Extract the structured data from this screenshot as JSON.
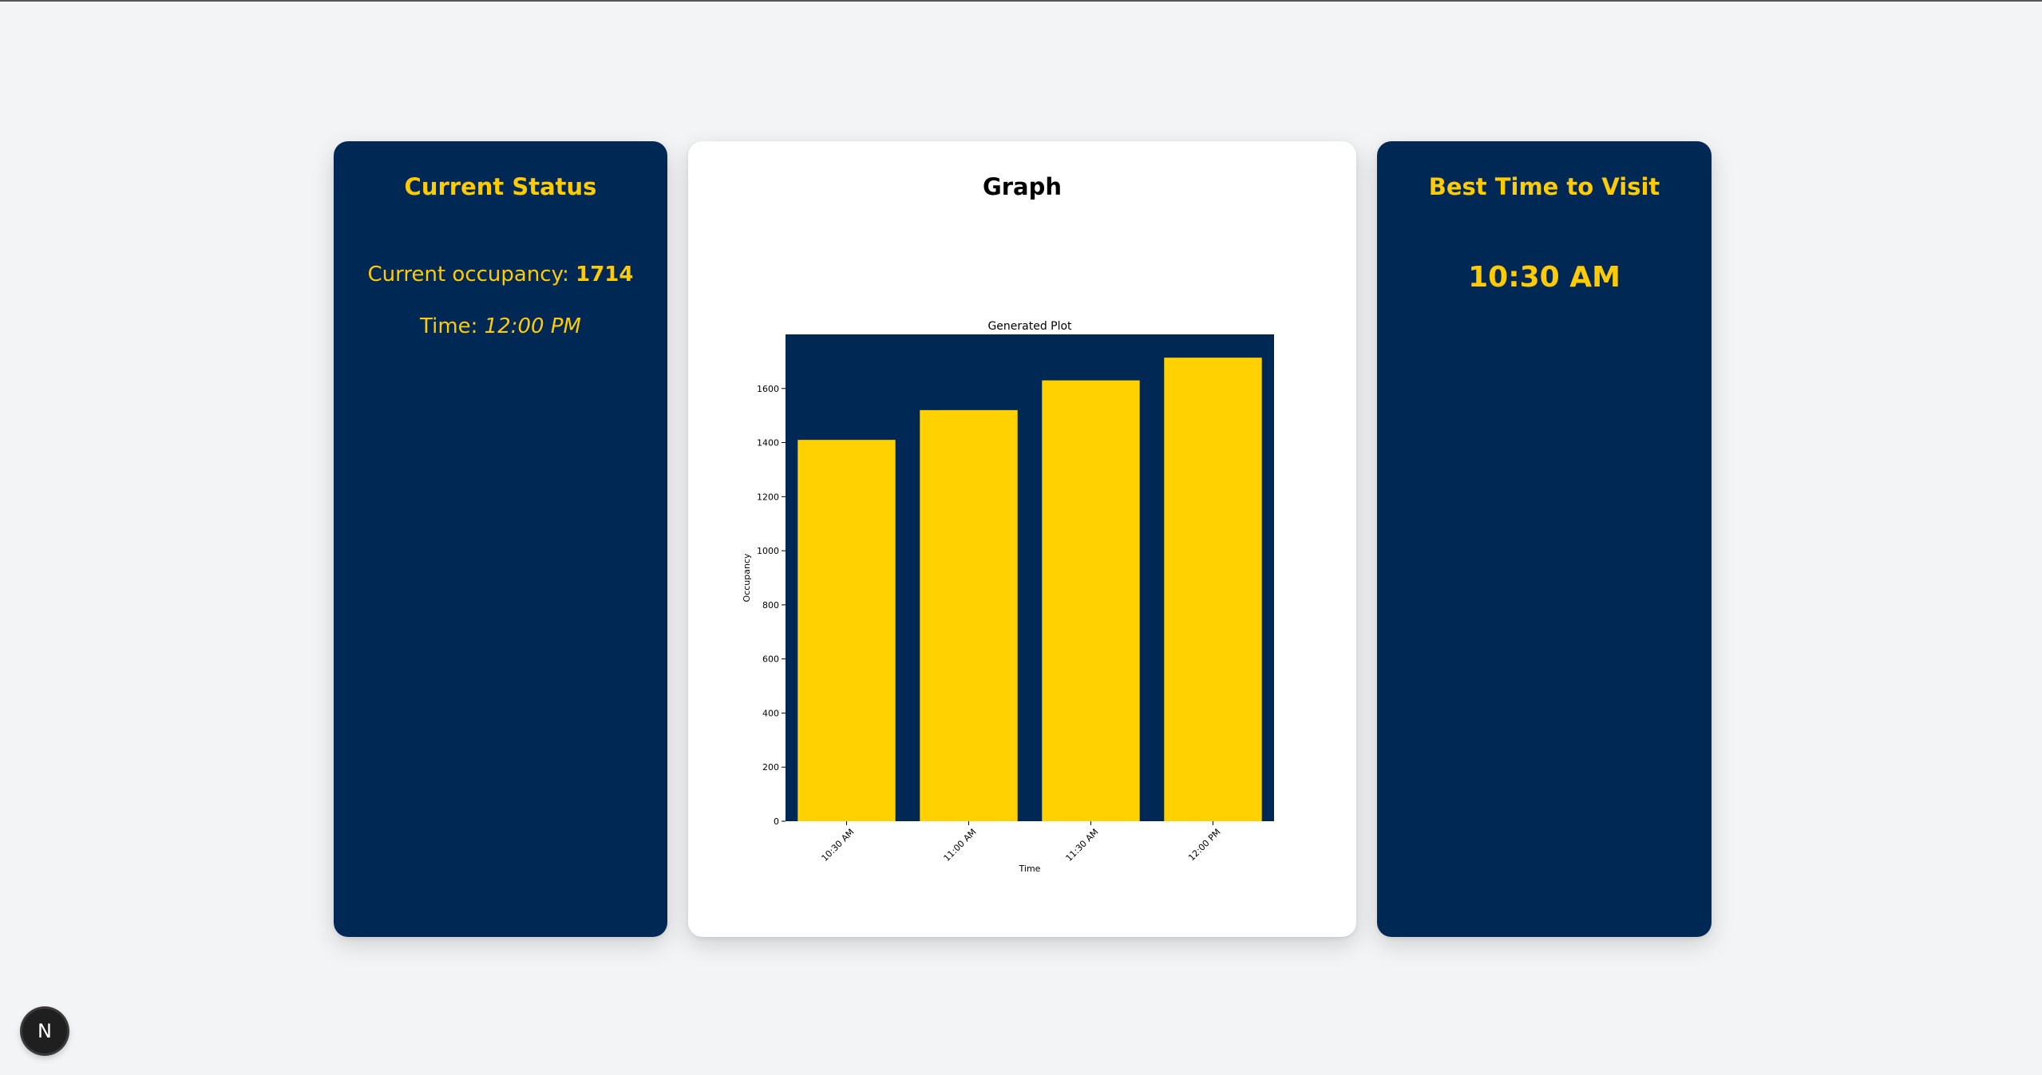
{
  "status_card": {
    "title": "Current Status",
    "occupancy_label": "Current occupancy: ",
    "occupancy_value": "1714",
    "time_label": "Time: ",
    "time_value": "12:00 PM"
  },
  "graph_card": {
    "title": "Graph"
  },
  "best_card": {
    "title": "Best Time to Visit",
    "value": "10:30 AM"
  },
  "badge": {
    "glyph": "N",
    "icon": "nextjs-logo-icon"
  },
  "colors": {
    "navy": "#002855",
    "maize": "#ffcb05",
    "bar": "#ffd100",
    "background": "#f3f4f6"
  },
  "chart_data": {
    "type": "bar",
    "title": "Generated Plot",
    "xlabel": "Time",
    "ylabel": "Occupancy",
    "categories": [
      "10:30 AM",
      "11:00 AM",
      "11:30 AM",
      "12:00 PM"
    ],
    "values": [
      1410,
      1520,
      1630,
      1714
    ],
    "ylim": [
      0,
      1800
    ],
    "yticks": [
      0,
      200,
      400,
      600,
      800,
      1000,
      1200,
      1400,
      1600
    ],
    "plot_background": "#002855",
    "bar_color": "#ffd100",
    "grid": false
  }
}
